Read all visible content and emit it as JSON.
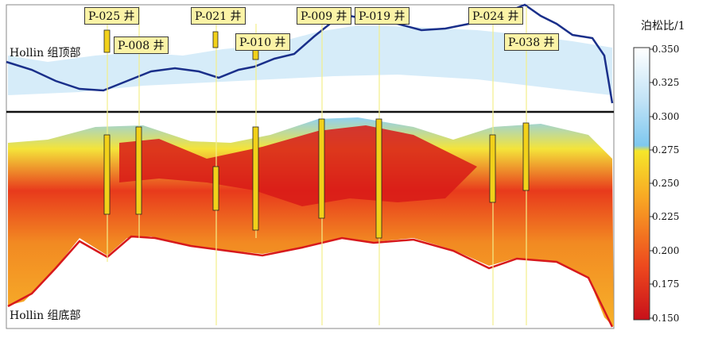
{
  "wells": [
    {
      "name": "P-025 井"
    },
    {
      "name": "P-008 井"
    },
    {
      "name": "P-021 井"
    },
    {
      "name": "P-010 井"
    },
    {
      "name": "P-009 井"
    },
    {
      "name": "P-019 井"
    },
    {
      "name": "P-024 井"
    },
    {
      "name": "P-038 井"
    }
  ],
  "horizons": {
    "top_label": "Hollin 组顶部",
    "bottom_label": "Hollin 组底部"
  },
  "colorbar": {
    "title": "泊松比/1",
    "ticks": [
      "0.350",
      "0.325",
      "0.300",
      "0.275",
      "0.250",
      "0.225",
      "0.200",
      "0.175",
      "0.150"
    ]
  },
  "colors": {
    "horizon_top": "#1a2f8a",
    "horizon_bottom": "#d7191c",
    "divider": "#111111",
    "well_trace": "#f2ee8a"
  }
}
